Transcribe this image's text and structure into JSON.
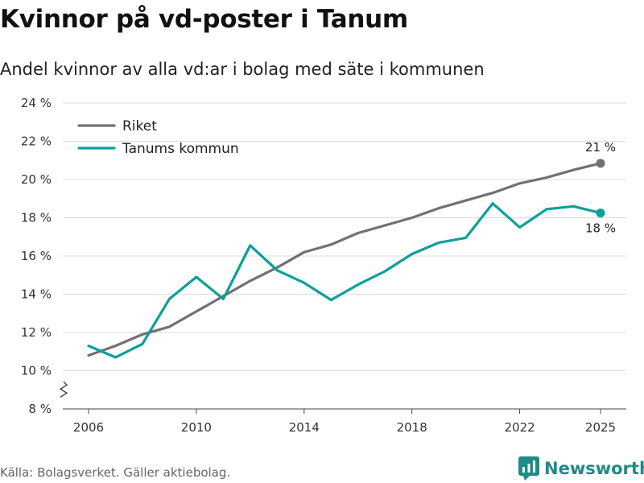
{
  "title": "Kvinnor på vd-poster i Tanum",
  "subtitle": "Andel kvinnor av alla vd:ar i bolag med säte i kommunen",
  "footer": "Källa: Bolagsverket. Gäller aktiebolag.",
  "brand": "Newsworthy",
  "colors": {
    "riket": "#727077",
    "tanum": "#0aa198",
    "brand": "#1e8b86",
    "grid": "#dddddd"
  },
  "chart_data": {
    "type": "line",
    "x": [
      2006,
      2007,
      2008,
      2009,
      2010,
      2011,
      2012,
      2013,
      2014,
      2015,
      2016,
      2017,
      2018,
      2019,
      2020,
      2021,
      2022,
      2023,
      2024,
      2025
    ],
    "series": [
      {
        "name": "Riket",
        "values": [
          10.8,
          11.3,
          11.9,
          12.3,
          13.1,
          13.9,
          14.7,
          15.4,
          16.2,
          16.6,
          17.2,
          17.6,
          18.0,
          18.5,
          18.9,
          19.3,
          19.8,
          20.1,
          20.5,
          20.85
        ]
      },
      {
        "name": "Tanums kommun",
        "values": [
          11.3,
          10.7,
          11.4,
          13.75,
          14.9,
          13.75,
          16.55,
          15.25,
          14.6,
          13.7,
          14.5,
          15.2,
          16.1,
          16.7,
          16.95,
          18.75,
          17.5,
          18.45,
          18.6,
          18.25
        ]
      }
    ],
    "end_labels": [
      "21 %",
      "18 %"
    ],
    "y_ticks": [
      8,
      10,
      12,
      14,
      16,
      18,
      20,
      22,
      24
    ],
    "y_tick_labels": [
      "8 %",
      "10 %",
      "12 %",
      "14 %",
      "16 %",
      "18 %",
      "20 %",
      "22 %",
      "24 %"
    ],
    "x_ticks": [
      2006,
      2010,
      2014,
      2018,
      2022,
      2025
    ],
    "x_tick_labels": [
      "2006",
      "2010",
      "2014",
      "2018",
      "2022",
      "2025"
    ],
    "ylim": [
      8,
      24
    ],
    "xlim": [
      2006,
      2025
    ],
    "y_axis_break": true,
    "grid": true,
    "legend": "top-left"
  }
}
